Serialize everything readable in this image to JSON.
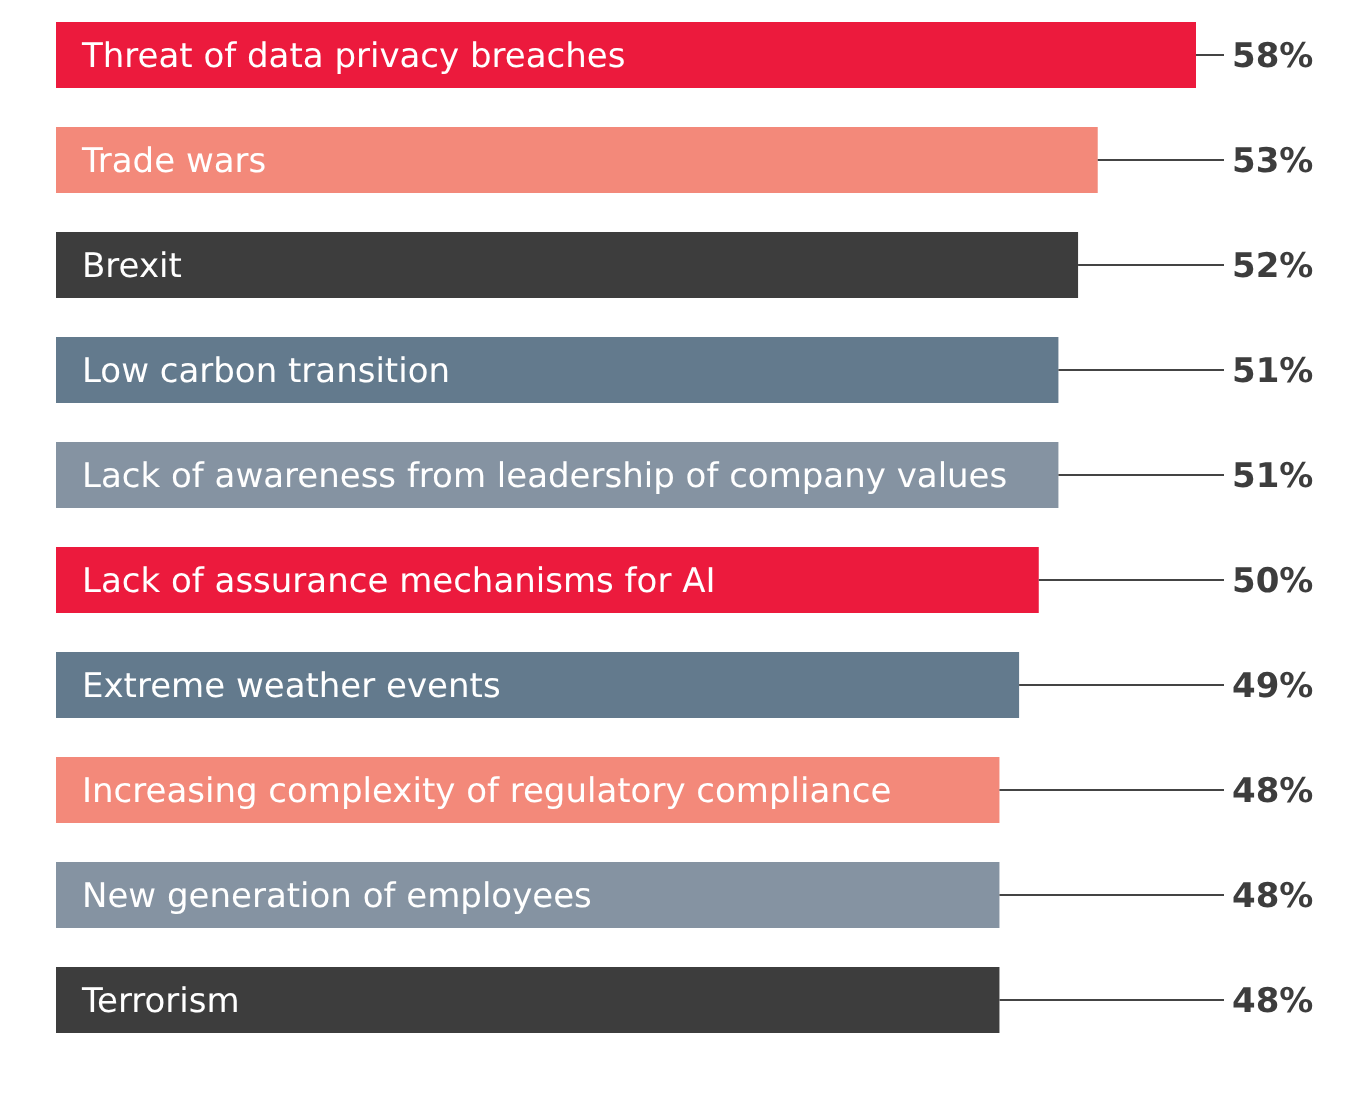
{
  "chart_data": {
    "type": "bar",
    "orientation": "horizontal",
    "categories": [
      "Threat of data privacy breaches",
      "Trade wars",
      "Brexit",
      "Low carbon transition",
      "Lack of awareness from leadership of company values",
      "Lack of assurance mechanisms for AI",
      "Extreme weather events",
      "Increasing complexity of regulatory compliance",
      "New generation of employees",
      "Terrorism"
    ],
    "values": [
      58,
      53,
      52,
      51,
      51,
      50,
      49,
      48,
      48,
      48
    ],
    "value_labels": [
      "58%",
      "53%",
      "52%",
      "51%",
      "51%",
      "50%",
      "49%",
      "48%",
      "48%",
      "48%"
    ],
    "colors": [
      "#ec1a3d",
      "#f3897a",
      "#3d3d3d",
      "#637a8d",
      "#8593a2",
      "#ec1a3d",
      "#637a8d",
      "#f3897a",
      "#8593a2",
      "#3d3d3d"
    ]
  }
}
